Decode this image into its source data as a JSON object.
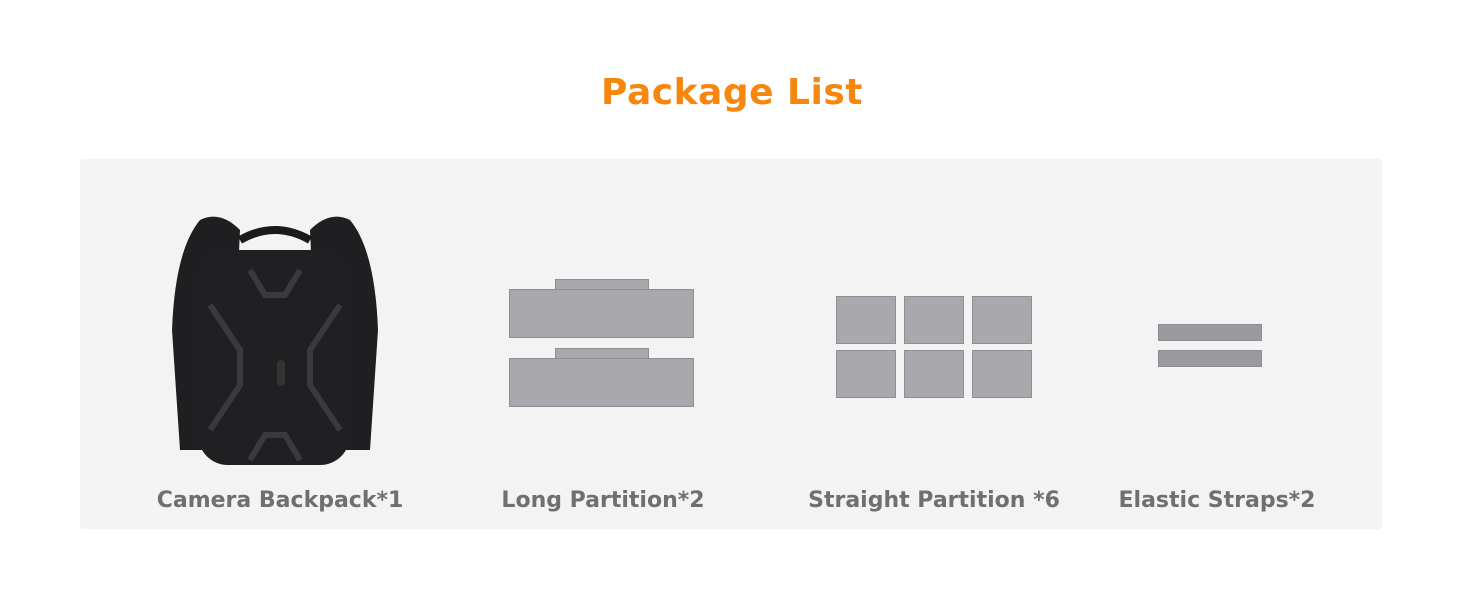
{
  "title": "Package List",
  "accent_color": "#f7860f",
  "items": [
    {
      "label": "Camera Backpack*1",
      "icon": "backpack-image"
    },
    {
      "label": "Long Partition*2",
      "icon": "long-partition-image"
    },
    {
      "label": "Straight Partition *6",
      "icon": "straight-partition-image"
    },
    {
      "label": "Elastic Straps*2",
      "icon": "elastic-strap-image"
    }
  ]
}
